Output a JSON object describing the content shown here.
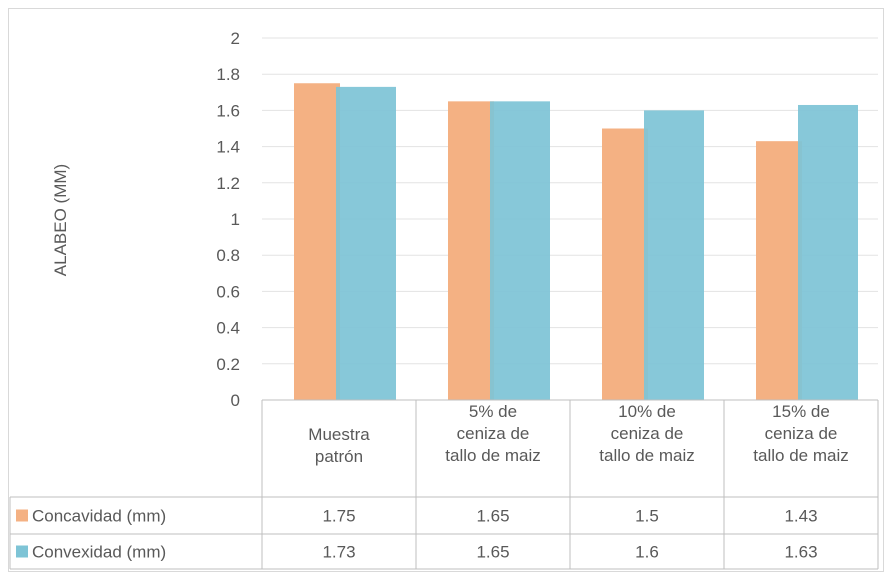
{
  "chart_data": {
    "type": "bar",
    "title": "",
    "xlabel": "",
    "ylabel": "ALABEO (MM)",
    "ylim": [
      0,
      2
    ],
    "yticks": [
      "0",
      "0.2",
      "0.4",
      "0.6",
      "0.8",
      "1",
      "1.2",
      "1.4",
      "1.6",
      "1.8",
      "2"
    ],
    "grid": true,
    "legend": "data-table",
    "categories": [
      [
        "Muestra",
        "patrón"
      ],
      [
        "5% de",
        "ceniza de",
        "tallo de maiz"
      ],
      [
        "10% de",
        "ceniza de",
        "tallo de maiz"
      ],
      [
        "15% de",
        "ceniza de",
        "tallo de maiz"
      ]
    ],
    "series": [
      {
        "name": "Concavidad (mm)",
        "color": "#f4b183",
        "values": [
          1.75,
          1.65,
          1.5,
          1.43
        ],
        "labels": [
          "1.75",
          "1.65",
          "1.5",
          "1.43"
        ]
      },
      {
        "name": "Convexidad (mm)",
        "color": "#7ec4d6",
        "values": [
          1.73,
          1.65,
          1.6,
          1.63
        ],
        "labels": [
          "1.73",
          "1.65",
          "1.6",
          "1.63"
        ]
      }
    ]
  }
}
